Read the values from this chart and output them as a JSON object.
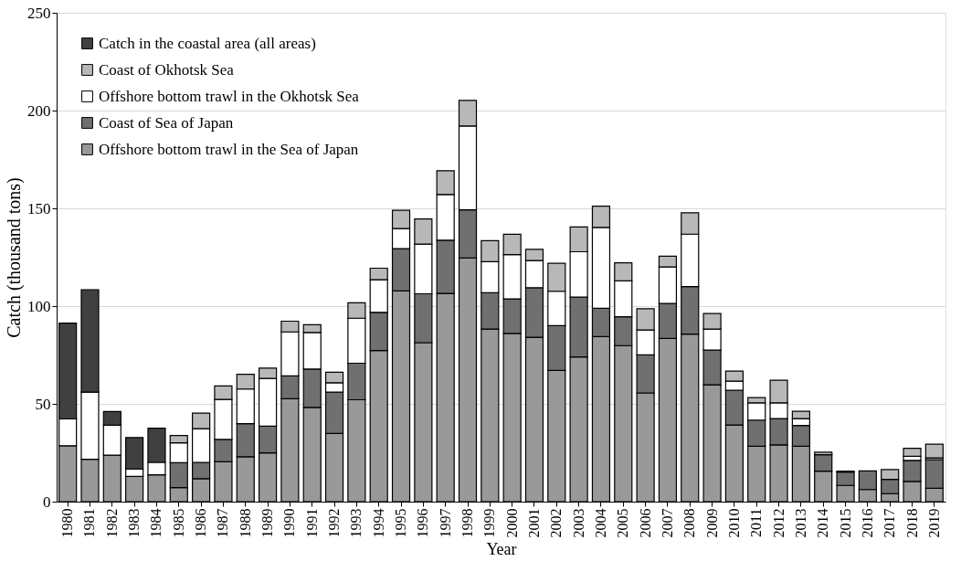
{
  "chart_data": {
    "type": "bar",
    "stacked": true,
    "xlabel": "Year",
    "ylabel": "Catch  (thousand tons)",
    "categories": [
      "1980",
      "1981",
      "1982",
      "1983",
      "1984",
      "1985",
      "1986",
      "1987",
      "1988",
      "1989",
      "1990",
      "1991",
      "1992",
      "1993",
      "1994",
      "1995",
      "1996",
      "1997",
      "1998",
      "1999",
      "2000",
      "2001",
      "2002",
      "2003",
      "2004",
      "2005",
      "2006",
      "2007",
      "2008",
      "2009",
      "2010",
      "2011",
      "2012",
      "2013",
      "2014",
      "2015",
      "2016",
      "2017",
      "2018",
      "2019"
    ],
    "series": [
      {
        "name": "Offshore bottom trawl in the Sea of Japan",
        "color": "#999999",
        "values": [
          28.6,
          21.7,
          23.8,
          12.9,
          13.7,
          7.2,
          11.7,
          20.4,
          23,
          24.9,
          52.6,
          48.2,
          34.9,
          52.1,
          77.3,
          107.8,
          81.3,
          106.5,
          124.6,
          88.3,
          86,
          84.1,
          67.1,
          74,
          84.4,
          79.8,
          55.6,
          83.5,
          85.7,
          59.8,
          39.2,
          28.3,
          29,
          28.3,
          15.6,
          8.3,
          6.2,
          4.1,
          10.3,
          6.8
        ]
      },
      {
        "name": "Coast of Sea of Japan",
        "color": "#707070",
        "values": [
          null,
          null,
          null,
          null,
          null,
          12.7,
          8.4,
          11.4,
          16.9,
          13.7,
          11.7,
          19.6,
          21.1,
          18.7,
          19.5,
          21.6,
          25,
          27.2,
          24.6,
          18.5,
          17.7,
          25.3,
          22.9,
          30.6,
          14.5,
          14.8,
          19.5,
          17.8,
          24.3,
          17.7,
          17.8,
          13.4,
          13.5,
          10.7,
          8.4,
          6.8,
          9.5,
          7.3,
          10.8,
          14.6
        ]
      },
      {
        "name": "Offshore bottom trawl in the Okhotsk Sea",
        "color": "#ffffff",
        "values": [
          13.7,
          34.3,
          15.3,
          3.8,
          6.4,
          10.2,
          17.2,
          20.5,
          17.7,
          24.4,
          22.5,
          18.7,
          4.8,
          23,
          16.7,
          10.3,
          25.4,
          23.4,
          42.9,
          15.9,
          22.6,
          13.9,
          17.6,
          23.2,
          41.3,
          18.3,
          12.7,
          18.7,
          26.8,
          10.8,
          4.6,
          8.8,
          8,
          3.5,
          null,
          null,
          null,
          null,
          2.1,
          1
        ]
      },
      {
        "name": "Coast of Okhotsk Sea",
        "color": "#b8b8b8",
        "values": [
          null,
          null,
          null,
          null,
          null,
          3.7,
          8,
          6.9,
          7.5,
          5.3,
          5.5,
          4,
          5.4,
          7.9,
          5.9,
          9.3,
          12.9,
          12.1,
          13.1,
          10.8,
          10.4,
          5.7,
          14.3,
          12.7,
          10.9,
          9.2,
          10.9,
          5.5,
          10.9,
          7.9,
          5.2,
          2.7,
          11.6,
          3.7,
          1.3,
          0.5,
          null,
          5,
          4.1,
          7
        ]
      },
      {
        "name": "Catch in the coastal area (all areas)",
        "color": "#404040",
        "values": [
          49,
          52.4,
          7,
          16.1,
          17.5,
          null,
          null,
          null,
          null,
          null,
          null,
          null,
          null,
          null,
          null,
          null,
          null,
          null,
          null,
          null,
          null,
          null,
          null,
          null,
          null,
          null,
          null,
          null,
          null,
          null,
          null,
          null,
          null,
          null,
          null,
          null,
          null,
          null,
          null,
          null
        ]
      }
    ],
    "ylim": [
      0,
      250
    ],
    "yticks": [
      0,
      50,
      100,
      150,
      200,
      250
    ],
    "grid": "y",
    "legend": "top left"
  }
}
